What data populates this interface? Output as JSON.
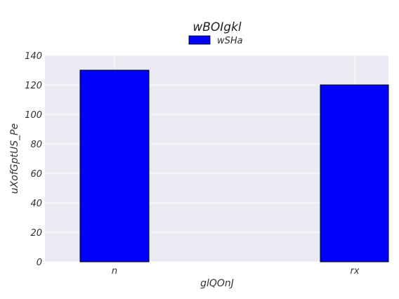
{
  "chart_data": {
    "type": "bar",
    "title": "wBOIgkl",
    "xlabel": "glQOnJ",
    "ylabel": "uXofGptUS_Pe",
    "categories": [
      "n",
      "rx"
    ],
    "series": [
      {
        "name": "wSHa",
        "values": [
          130,
          120
        ],
        "color": "#0000ff"
      }
    ],
    "ylim": [
      0,
      140
    ],
    "yticks": [
      0,
      20,
      40,
      60,
      80,
      100,
      120,
      140
    ],
    "grid": true,
    "legend": "top-center",
    "background_color": "#eaeaf2",
    "gridline_color": "#ffffff"
  }
}
